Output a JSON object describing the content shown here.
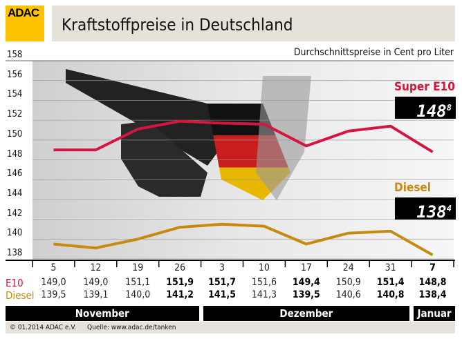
{
  "logo": "ADAC",
  "title": "Kraftstoffpreise in Deutschland",
  "chart_data": {
    "type": "line",
    "title": "Kraftstoffpreise in Deutschland",
    "ylabel": "Durchschnittspreise in Cent pro Liter",
    "ylim": [
      138,
      158
    ],
    "yticks": [
      "158",
      "156",
      "154",
      "152",
      "150",
      "148",
      "146",
      "144",
      "142",
      "140",
      "138"
    ],
    "categories": [
      "5",
      "12",
      "19",
      "26",
      "3",
      "10",
      "17",
      "24",
      "31",
      "7"
    ],
    "months": [
      {
        "label": "November",
        "span": 4
      },
      {
        "label": "Dezember",
        "span": 5
      },
      {
        "label": "Januar",
        "span": 1
      }
    ],
    "grid": true,
    "series": [
      {
        "name": "Super E10",
        "row_label": "E10",
        "color": "#d6153f",
        "values": [
          149.0,
          149.0,
          151.1,
          151.9,
          151.7,
          151.6,
          149.4,
          150.9,
          151.4,
          148.8
        ],
        "labels": [
          "149,0",
          "149,0",
          "151,1",
          "151,9",
          "151,7",
          "151,6",
          "149,4",
          "150,9",
          "151,4",
          "148,8"
        ],
        "display": "148",
        "display_sup": "8"
      },
      {
        "name": "Diesel",
        "row_label": "Diesel",
        "color": "#c8890f",
        "values": [
          139.5,
          139.1,
          140.0,
          141.2,
          141.5,
          141.3,
          139.5,
          140.6,
          140.8,
          138.4
        ],
        "labels": [
          "139,5",
          "139,1",
          "140,0",
          "141,2",
          "141,5",
          "141,3",
          "139,5",
          "140,6",
          "140,8",
          "138,4"
        ],
        "display": "138",
        "display_sup": "4"
      }
    ],
    "bold_columns": [
      3,
      4,
      6,
      8,
      9
    ]
  },
  "footer": {
    "copyright": "© 01.2014  ADAC e.V.",
    "source": "Quelle: www.adac.de/tanken"
  }
}
